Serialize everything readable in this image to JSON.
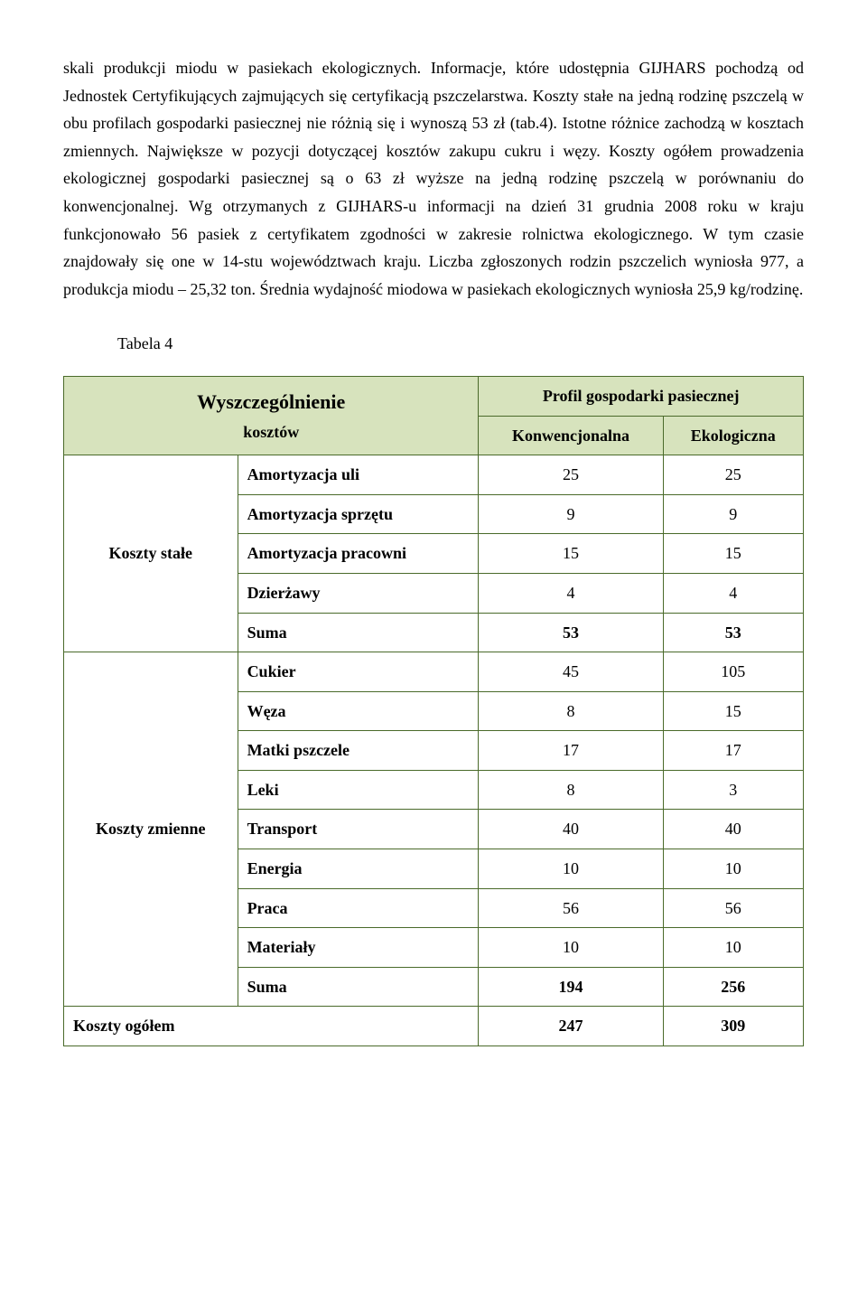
{
  "paragraph": "skali produkcji miodu w pasiekach ekologicznych. Informacje, które udostępnia GIJHARS pochodzą od Jednostek Certyfikujących zajmujących się certyfikacją pszczelarstwa. Koszty stałe na jedną rodzinę pszczelą w obu profilach gospodarki pasiecznej nie różnią się i wynoszą 53 zł (tab.4). Istotne różnice zachodzą w kosztach zmiennych. Największe w pozycji dotyczącej kosztów zakupu cukru i węzy. Koszty ogółem prowadzenia ekologicznej gospodarki pasiecznej są o 63 zł wyższe na jedną rodzinę pszczelą w porównaniu do konwencjonalnej. Wg otrzymanych z GIJHARS-u informacji na dzień 31 grudnia 2008 roku w kraju funkcjonowało 56 pasiek z certyfikatem zgodności w zakresie rolnictwa ekologicznego. W tym czasie znajdowały się one w 14-stu województwach kraju. Liczba zgłoszonych rodzin pszczelich wyniosła 977, a produkcja miodu – 25,32 ton. Średnia wydajność miodowa w pasiekach ekologicznych wyniosła 25,9 kg/rodzinę.",
  "tabela_label": "Tabela 4",
  "table": {
    "header_top_left": "Wyszczególnienie kosztów",
    "header_top_right": "Profil gospodarki pasiecznej",
    "col_konw": "Konwencjonalna",
    "col_ekol": "Ekologiczna",
    "group_stale": "Koszty stałe",
    "group_zmienne": "Koszty zmienne",
    "rows_stale": {
      "amort_uli": {
        "label": "Amortyzacja uli",
        "konw": "25",
        "ekol": "25"
      },
      "amort_sprzetu": {
        "label": "Amortyzacja sprzętu",
        "konw": "9",
        "ekol": "9"
      },
      "amort_pracowni": {
        "label": "Amortyzacja pracowni",
        "konw": "15",
        "ekol": "15"
      },
      "dzierzawy": {
        "label": "Dzierżawy",
        "konw": "4",
        "ekol": "4"
      },
      "suma": {
        "label": "Suma",
        "konw": "53",
        "ekol": "53"
      }
    },
    "rows_zmienne": {
      "cukier": {
        "label": "Cukier",
        "konw": "45",
        "ekol": "105"
      },
      "weza": {
        "label": "Węza",
        "konw": "8",
        "ekol": "15"
      },
      "matki": {
        "label": "Matki pszczele",
        "konw": "17",
        "ekol": "17"
      },
      "leki": {
        "label": "Leki",
        "konw": "8",
        "ekol": "3"
      },
      "transport": {
        "label": "Transport",
        "konw": "40",
        "ekol": "40"
      },
      "energia": {
        "label": "Energia",
        "konw": "10",
        "ekol": "10"
      },
      "praca": {
        "label": "Praca",
        "konw": "56",
        "ekol": "56"
      },
      "materialy": {
        "label": "Materiały",
        "konw": "10",
        "ekol": "10"
      },
      "suma": {
        "label": "Suma",
        "konw": "194",
        "ekol": "256"
      }
    },
    "total": {
      "label": "Koszty ogółem",
      "konw": "247",
      "ekol": "309"
    }
  },
  "colors": {
    "header_bg": "#d7e3bd",
    "border": "#4a6a2a",
    "text": "#000000",
    "page_bg": "#ffffff"
  }
}
